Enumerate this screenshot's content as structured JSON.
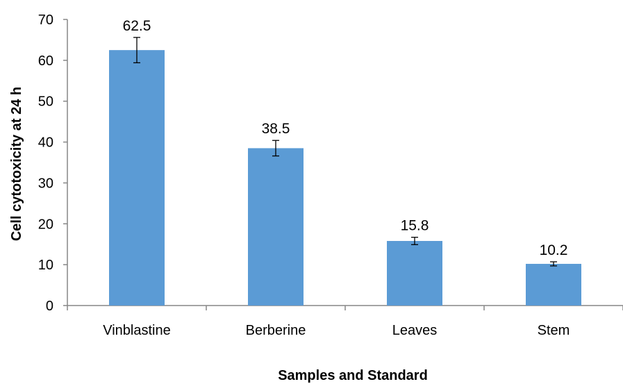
{
  "chart_data": {
    "type": "bar",
    "title": "",
    "xlabel": "Samples and Standard",
    "ylabel": "Cell cytotoxicity at 24 h",
    "categories": [
      "Vinblastine",
      "Berberine",
      "Leaves",
      "Stem"
    ],
    "values": [
      62.5,
      38.5,
      15.8,
      10.2
    ],
    "value_labels": [
      "62.5",
      "38.5",
      "15.8",
      "10.2"
    ],
    "error": [
      3.1,
      1.9,
      0.9,
      0.5
    ],
    "ylim": [
      0,
      70
    ],
    "yticks": [
      0,
      10,
      20,
      30,
      40,
      50,
      60,
      70
    ],
    "ytick_labels": [
      "0",
      "10",
      "20",
      "30",
      "40",
      "50",
      "60",
      "70"
    ],
    "grid": false,
    "legend": "none",
    "colors": {
      "bar": "#5b9bd5",
      "axis": "#868686",
      "error_bar": "#000000"
    }
  }
}
